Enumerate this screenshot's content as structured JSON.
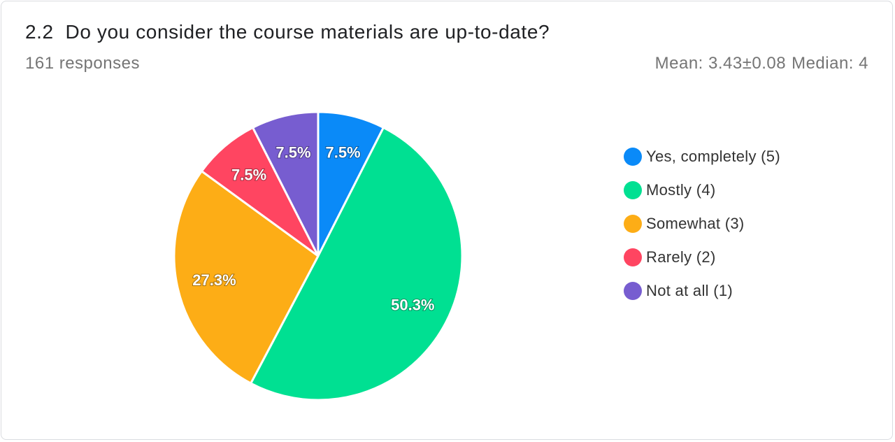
{
  "header": {
    "question_number": "2.2",
    "question_text": "Do you consider the course materials are up-to-date?",
    "responses": "161 responses",
    "mean": "Mean: 3.43±0.08",
    "median": "Median: 4"
  },
  "chart_data": {
    "type": "pie",
    "categories": [
      "Yes, completely (5)",
      "Mostly (4)",
      "Somewhat (3)",
      "Rarely (2)",
      "Not at all (1)"
    ],
    "values": [
      7.5,
      50.3,
      27.3,
      7.5,
      7.5
    ],
    "labels": [
      "7.5%",
      "50.3%",
      "27.3%",
      "7.5%",
      "7.5%"
    ],
    "colors": [
      "#0a8af8",
      "#00e092",
      "#fdad16",
      "#ff4561",
      "#775dd0"
    ],
    "legend_placement": "right"
  }
}
